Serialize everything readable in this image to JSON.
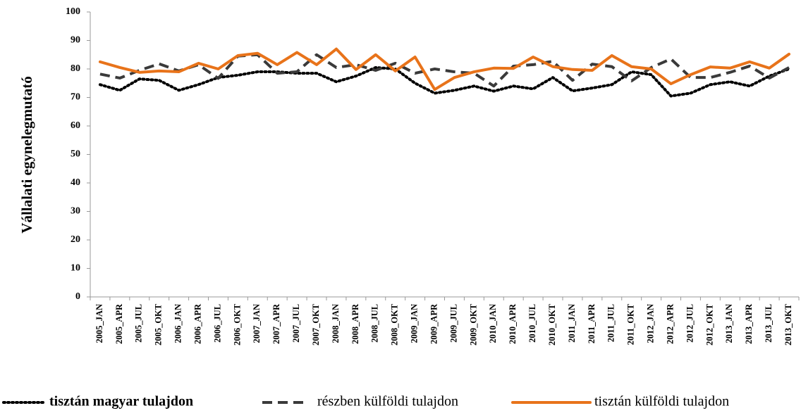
{
  "chart_data": {
    "type": "line",
    "y_label": "Vállalati egynelegmutató",
    "categories": [
      "2005_JAN",
      "2005_APR",
      "2005_JUL",
      "2005_OKT",
      "2006_JAN",
      "2006_APR",
      "2006_JUL",
      "2006_OKT",
      "2007_JAN",
      "2007_APR",
      "2007_JUL",
      "2007_OKT",
      "2008_JAN",
      "2008_APR",
      "2008_JUL",
      "2008_OKT",
      "2009_JAN",
      "2009_APR",
      "2009_JUL",
      "2009_OKT",
      "2010_JAN",
      "2010_APR",
      "2010_JUL",
      "2010_OKT",
      "2011_JAN",
      "2011_APR",
      "2011_JUL",
      "2011_OKT",
      "2012_JAN",
      "2012_APR",
      "2012_JUL",
      "2012_OKT",
      "2013_JAN",
      "2013_APR",
      "2013_JUL",
      "2013_OKT"
    ],
    "series": [
      {
        "name": "tisztán magyar tulajdon",
        "color": "#000000",
        "dash": "dotted",
        "values": [
          74.5,
          72.5,
          76.5,
          76,
          72.5,
          74.5,
          77,
          77.8,
          79,
          79,
          78.5,
          78.5,
          75.5,
          77.5,
          80.5,
          80,
          75,
          71.5,
          72.5,
          74,
          72.2,
          74,
          73,
          77,
          72.3,
          73.3,
          74.5,
          79,
          78,
          70.5,
          71.5,
          74.5,
          75.5,
          74,
          77.5,
          80
        ]
      },
      {
        "name": "részben külföldi tulajdon",
        "color": "#3a3a3a",
        "dash": "dashed",
        "values": [
          78.2,
          76.8,
          79.5,
          81.8,
          79.3,
          81.5,
          76.7,
          84.5,
          85,
          78.5,
          79,
          85,
          80.5,
          81.5,
          79.5,
          82,
          78.5,
          80,
          79,
          78.5,
          74,
          81,
          81.5,
          82.7,
          76,
          81.7,
          80.8,
          75.8,
          80.5,
          83.5,
          77,
          77,
          78.8,
          81,
          76.8,
          80.5
        ]
      },
      {
        "name": "tisztán külföldi tulajdon",
        "color": "#e8731a",
        "dash": "solid",
        "values": [
          82.5,
          80.5,
          78.8,
          79.3,
          79,
          82,
          80,
          84.7,
          85.5,
          81.5,
          85.8,
          81.5,
          87,
          79.8,
          85,
          79.3,
          84.2,
          72.8,
          77,
          79,
          80.3,
          80.2,
          84.2,
          80.8,
          79.8,
          79.5,
          84.7,
          80.8,
          80,
          74.8,
          78,
          80.7,
          80.3,
          82.5,
          80.3,
          85.2
        ]
      }
    ],
    "ylim": [
      0,
      100
    ],
    "yticks": [
      0,
      10,
      20,
      30,
      40,
      50,
      60,
      70,
      80,
      90,
      100
    ],
    "grid": false
  }
}
